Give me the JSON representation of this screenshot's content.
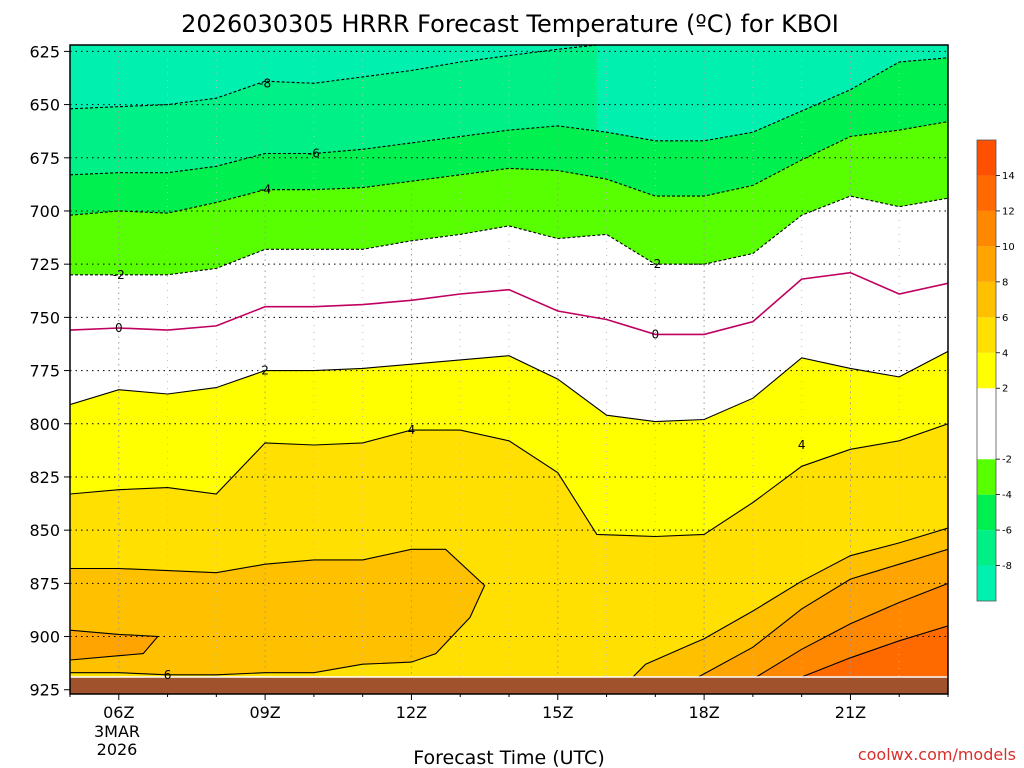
{
  "chart_data": {
    "type": "contour",
    "title": "2026030305 HRRR Forecast Temperature (ºC) for KBOI",
    "xlabel": "Forecast Time (UTC)",
    "ylabel": "",
    "credit": "coolwx.com/models",
    "y_ticks": [
      "625",
      "650",
      "675",
      "700",
      "725",
      "750",
      "775",
      "800",
      "825",
      "850",
      "875",
      "900",
      "925"
    ],
    "y_values": [
      625,
      650,
      675,
      700,
      725,
      750,
      775,
      800,
      825,
      850,
      875,
      900,
      925
    ],
    "ylim": [
      622,
      927
    ],
    "y_reversed": true,
    "x_ticks": [
      "06Z",
      "09Z",
      "12Z",
      "15Z",
      "18Z",
      "21Z"
    ],
    "x_values": [
      6,
      9,
      12,
      15,
      18,
      21
    ],
    "x_start_date": [
      "3MAR",
      "2026"
    ],
    "xlim": [
      5,
      23
    ],
    "grid": "dotted",
    "colorbar": {
      "ticks": [
        "14",
        "12",
        "10",
        "8",
        "6",
        "4",
        "2",
        "-2",
        "-4",
        "-6",
        "-8"
      ],
      "values": [
        14,
        12,
        10,
        8,
        6,
        4,
        2,
        -2,
        -4,
        -6,
        -8
      ],
      "range": [
        -10,
        16
      ],
      "colors": [
        {
          "from": -10,
          "to": -8,
          "color": "#00f0b0"
        },
        {
          "from": -8,
          "to": -6,
          "color": "#00f088"
        },
        {
          "from": -6,
          "to": -4,
          "color": "#00f050"
        },
        {
          "from": -4,
          "to": -2,
          "color": "#58ff00"
        },
        {
          "from": -2,
          "to": 2,
          "color": "#ffffff"
        },
        {
          "from": 2,
          "to": 4,
          "color": "#ffff00"
        },
        {
          "from": 4,
          "to": 6,
          "color": "#ffe000"
        },
        {
          "from": 6,
          "to": 8,
          "color": "#ffc000"
        },
        {
          "from": 8,
          "to": 10,
          "color": "#ffa400"
        },
        {
          "from": 10,
          "to": 12,
          "color": "#ff8800"
        },
        {
          "from": 12,
          "to": 14,
          "color": "#ff6a00"
        },
        {
          "from": 14,
          "to": 16,
          "color": "#ff5000"
        }
      ]
    },
    "terrain_color": "#a0522d",
    "terrain_level": 919,
    "contours": [
      {
        "level": -8,
        "style": "dashed",
        "color": "#000000",
        "points": [
          [
            5,
            652
          ],
          [
            6,
            651
          ],
          [
            7,
            650
          ],
          [
            8,
            647
          ],
          [
            9,
            639
          ],
          [
            10,
            640
          ],
          [
            11,
            637
          ],
          [
            12,
            634
          ],
          [
            13,
            630
          ],
          [
            14,
            627
          ],
          [
            15,
            624
          ],
          [
            15.8,
            622
          ]
        ]
      },
      {
        "level": -6,
        "style": "dashed",
        "color": "#000000",
        "points": [
          [
            5,
            683
          ],
          [
            6,
            682
          ],
          [
            7,
            682
          ],
          [
            8,
            679
          ],
          [
            9,
            673
          ],
          [
            10,
            673
          ],
          [
            11,
            671
          ],
          [
            12,
            668
          ],
          [
            13,
            665
          ],
          [
            14,
            662
          ],
          [
            15,
            660
          ],
          [
            16,
            663
          ],
          [
            17,
            667
          ],
          [
            18,
            667
          ],
          [
            19,
            663
          ],
          [
            20,
            653
          ],
          [
            21,
            643
          ],
          [
            22,
            630
          ],
          [
            23,
            628
          ]
        ]
      },
      {
        "level": -4,
        "style": "dashed",
        "color": "#000000",
        "points": [
          [
            5,
            702
          ],
          [
            6,
            700
          ],
          [
            7,
            701
          ],
          [
            8,
            696
          ],
          [
            9,
            690
          ],
          [
            10,
            690
          ],
          [
            11,
            689
          ],
          [
            12,
            686
          ],
          [
            13,
            683
          ],
          [
            14,
            680
          ],
          [
            15,
            681
          ],
          [
            16,
            685
          ],
          [
            17,
            693
          ],
          [
            18,
            693
          ],
          [
            19,
            688
          ],
          [
            20,
            676
          ],
          [
            21,
            665
          ],
          [
            22,
            662
          ],
          [
            23,
            658
          ]
        ]
      },
      {
        "level": -2,
        "style": "dashed",
        "color": "#000000",
        "points": [
          [
            5,
            730
          ],
          [
            6,
            730
          ],
          [
            7,
            730
          ],
          [
            8,
            727
          ],
          [
            9,
            718
          ],
          [
            10,
            718
          ],
          [
            11,
            718
          ],
          [
            12,
            714
          ],
          [
            13,
            711
          ],
          [
            14,
            707
          ],
          [
            15,
            713
          ],
          [
            16,
            711
          ],
          [
            17,
            725
          ],
          [
            18,
            725
          ],
          [
            19,
            720
          ],
          [
            20,
            702
          ],
          [
            21,
            693
          ],
          [
            22,
            698
          ],
          [
            23,
            694
          ]
        ]
      },
      {
        "level": 0,
        "style": "solid",
        "color": "#c00060",
        "points": [
          [
            5,
            756
          ],
          [
            6,
            755
          ],
          [
            7,
            756
          ],
          [
            8,
            754
          ],
          [
            9,
            745
          ],
          [
            10,
            745
          ],
          [
            11,
            744
          ],
          [
            12,
            742
          ],
          [
            13,
            739
          ],
          [
            14,
            737
          ],
          [
            15,
            747
          ],
          [
            16,
            751
          ],
          [
            17,
            758
          ],
          [
            18,
            758
          ],
          [
            19,
            752
          ],
          [
            20,
            732
          ],
          [
            21,
            729
          ],
          [
            22,
            739
          ],
          [
            23,
            734
          ]
        ]
      },
      {
        "level": 2,
        "style": "solid",
        "color": "#000000",
        "points": [
          [
            5,
            791
          ],
          [
            6,
            784
          ],
          [
            7,
            786
          ],
          [
            8,
            783
          ],
          [
            9,
            775
          ],
          [
            10,
            775
          ],
          [
            11,
            774
          ],
          [
            12,
            772
          ],
          [
            13,
            770
          ],
          [
            14,
            768
          ],
          [
            15,
            779
          ],
          [
            16,
            796
          ],
          [
            17,
            799
          ],
          [
            18,
            798
          ],
          [
            19,
            788
          ],
          [
            20,
            769
          ],
          [
            21,
            774
          ],
          [
            22,
            778
          ],
          [
            23,
            766
          ]
        ]
      },
      {
        "level": 4,
        "style": "solid",
        "color": "#000000",
        "points": [
          [
            5,
            833
          ],
          [
            6,
            831
          ],
          [
            7,
            830
          ],
          [
            8,
            833
          ],
          [
            9,
            809
          ],
          [
            10,
            810
          ],
          [
            11,
            809
          ],
          [
            12,
            803
          ],
          [
            13,
            803
          ],
          [
            14,
            808
          ],
          [
            15,
            823
          ],
          [
            15.8,
            852
          ],
          [
            17,
            853
          ],
          [
            18,
            852
          ],
          [
            19,
            837
          ],
          [
            20,
            820
          ],
          [
            21,
            812
          ],
          [
            22,
            808
          ],
          [
            23,
            800
          ]
        ]
      },
      {
        "level": 6,
        "style": "solid",
        "color": "#000000",
        "points": [
          [
            5,
            868
          ],
          [
            6,
            868
          ],
          [
            7,
            869
          ],
          [
            8,
            870
          ],
          [
            9,
            866
          ],
          [
            10,
            864
          ],
          [
            11,
            864
          ],
          [
            12,
            859
          ],
          [
            12.7,
            859
          ],
          [
            13.5,
            876
          ],
          [
            13.2,
            891
          ],
          [
            12.5,
            908
          ],
          [
            12,
            912
          ],
          [
            11,
            913
          ],
          [
            10,
            917
          ],
          [
            9,
            917
          ],
          [
            8,
            918
          ],
          [
            7,
            918
          ],
          [
            6,
            917
          ],
          [
            5,
            917
          ]
        ]
      },
      {
        "level": 6,
        "style": "solid",
        "color": "#000000",
        "points": [
          [
            16.5,
            920
          ],
          [
            16.8,
            913
          ],
          [
            17,
            911
          ],
          [
            17.8,
            903
          ],
          [
            18,
            901
          ],
          [
            19,
            888
          ],
          [
            20,
            874
          ],
          [
            21,
            862
          ],
          [
            22,
            856
          ],
          [
            23,
            849
          ]
        ]
      },
      {
        "level": 8,
        "style": "solid",
        "color": "#000000",
        "points": [
          [
            5,
            897
          ],
          [
            6,
            899
          ],
          [
            6.8,
            900
          ],
          [
            6.5,
            908
          ],
          [
            6,
            909
          ],
          [
            5,
            911
          ]
        ]
      },
      {
        "level": 8,
        "style": "solid",
        "color": "#000000",
        "points": [
          [
            17.8,
            920
          ],
          [
            19,
            905
          ],
          [
            20,
            887
          ],
          [
            21,
            873
          ],
          [
            22,
            866
          ],
          [
            23,
            859
          ]
        ]
      },
      {
        "level": 10,
        "style": "solid",
        "color": "#000000",
        "points": [
          [
            19,
            920
          ],
          [
            20,
            906
          ],
          [
            21,
            894
          ],
          [
            22,
            884
          ],
          [
            23,
            875
          ]
        ]
      },
      {
        "level": 12,
        "style": "solid",
        "color": "#000000",
        "points": [
          [
            20,
            919
          ],
          [
            21,
            910
          ],
          [
            22,
            902
          ],
          [
            23,
            895
          ]
        ]
      }
    ],
    "contour_labels": [
      {
        "text": "-8",
        "x": 9,
        "y": 640
      },
      {
        "text": "-6",
        "x": 10,
        "y": 673
      },
      {
        "text": "-4",
        "x": 9,
        "y": 690
      },
      {
        "text": "-2",
        "x": 6,
        "y": 730
      },
      {
        "text": "-2",
        "x": 17,
        "y": 725
      },
      {
        "text": "0",
        "x": 6,
        "y": 755
      },
      {
        "text": "0",
        "x": 17,
        "y": 758
      },
      {
        "text": "2",
        "x": 9,
        "y": 775
      },
      {
        "text": "4",
        "x": 12,
        "y": 803
      },
      {
        "text": "4",
        "x": 20,
        "y": 810
      },
      {
        "text": "6",
        "x": 7,
        "y": 918
      }
    ]
  }
}
